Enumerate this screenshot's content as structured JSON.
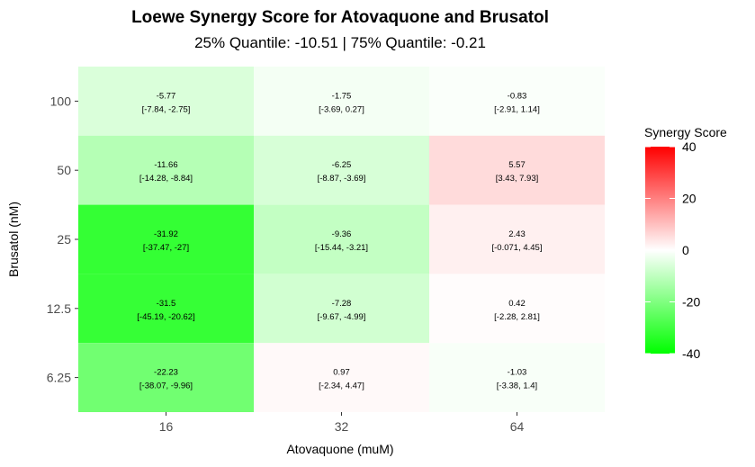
{
  "chart_data": {
    "type": "heatmap",
    "title": "Loewe Synergy Score for Atovaquone and Brusatol",
    "subtitle": "25% Quantile: -10.51 | 75% Quantile: -0.21",
    "xlabel": "Atovaquone (muM)",
    "ylabel": "Brusatol (nM)",
    "x_categories": [
      "16",
      "32",
      "64"
    ],
    "y_categories": [
      "100",
      "50",
      "25",
      "12.5",
      "6.25"
    ],
    "cells": [
      {
        "x": "16",
        "y": "100",
        "value": -5.77,
        "ci": "[-7.84, -2.75]"
      },
      {
        "x": "32",
        "y": "100",
        "value": -1.75,
        "ci": "[-3.69, 0.27]"
      },
      {
        "x": "64",
        "y": "100",
        "value": -0.83,
        "ci": "[-2.91, 1.14]"
      },
      {
        "x": "16",
        "y": "50",
        "value": -11.66,
        "ci": "[-14.28, -8.84]"
      },
      {
        "x": "32",
        "y": "50",
        "value": -6.25,
        "ci": "[-8.87, -3.69]"
      },
      {
        "x": "64",
        "y": "50",
        "value": 5.57,
        "ci": "[3.43, 7.93]"
      },
      {
        "x": "16",
        "y": "25",
        "value": -31.92,
        "ci": "[-37.47, -27]"
      },
      {
        "x": "32",
        "y": "25",
        "value": -9.36,
        "ci": "[-15.44, -3.21]"
      },
      {
        "x": "64",
        "y": "25",
        "value": 2.43,
        "ci": "[-0.071, 4.45]"
      },
      {
        "x": "16",
        "y": "12.5",
        "value": -31.5,
        "ci": "[-45.19, -20.62]"
      },
      {
        "x": "32",
        "y": "12.5",
        "value": -7.28,
        "ci": "[-9.67, -4.99]"
      },
      {
        "x": "64",
        "y": "12.5",
        "value": 0.42,
        "ci": "[-2.28, 2.81]"
      },
      {
        "x": "16",
        "y": "6.25",
        "value": -22.23,
        "ci": "[-38.07, -9.96]"
      },
      {
        "x": "32",
        "y": "6.25",
        "value": 0.97,
        "ci": "[-2.34, 4.47]"
      },
      {
        "x": "64",
        "y": "6.25",
        "value": -1.03,
        "ci": "[-3.38, 1.4]"
      }
    ],
    "legend": {
      "title": "Synergy Score",
      "placement": "right",
      "ticks": [
        40,
        20,
        0,
        -20,
        -40
      ],
      "range": [
        -40,
        40
      ],
      "colors": {
        "low": "#00ff00",
        "mid": "#ffffff",
        "high": "#ff0000"
      }
    },
    "grid": false
  }
}
